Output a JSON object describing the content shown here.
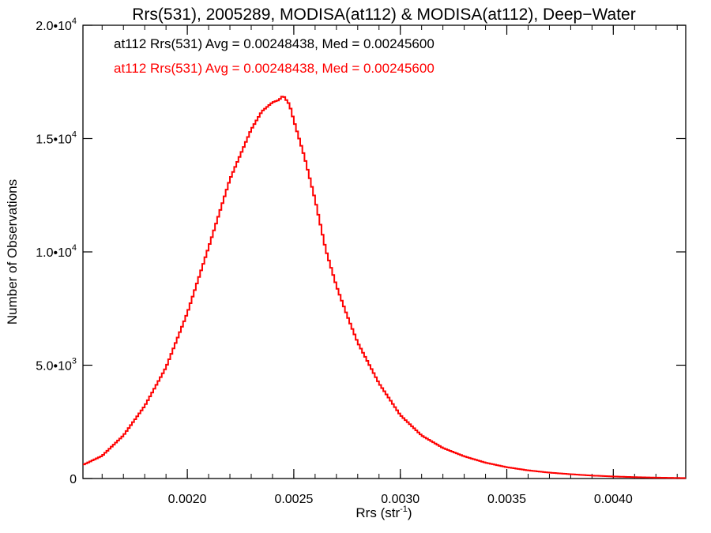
{
  "chart_data": {
    "type": "line",
    "title": "Rrs(531), 2005289, MODISA(at112) & MODISA(at112), Deep−Water",
    "xlabel": "Rrs (str",
    "xlabel_sup": "-1",
    "xlabel_close": ")",
    "ylabel": "Number of Observations",
    "xlim": [
      0.00151,
      0.00434
    ],
    "ylim": [
      0,
      20000
    ],
    "x_ticks": [
      {
        "value": 0.002,
        "label": "0.0020"
      },
      {
        "value": 0.0025,
        "label": "0.0025"
      },
      {
        "value": 0.003,
        "label": "0.0030"
      },
      {
        "value": 0.0035,
        "label": "0.0035"
      },
      {
        "value": 0.004,
        "label": "0.0040"
      }
    ],
    "y_ticks": [
      {
        "value": 0,
        "base": "0",
        "exp": ""
      },
      {
        "value": 5000,
        "base": "5.0•10",
        "exp": "3"
      },
      {
        "value": 10000,
        "base": "1.0•10",
        "exp": "4"
      },
      {
        "value": 15000,
        "base": "1.5•10",
        "exp": "4"
      },
      {
        "value": 20000,
        "base": "2.0•10",
        "exp": "4"
      }
    ],
    "annotations": [
      {
        "text": "at112 Rrs(531) Avg = 0.00248438, Med = 0.00245600",
        "color": "#000000"
      },
      {
        "text": "at112 Rrs(531) Avg = 0.00248438, Med = 0.00245600",
        "color": "#ff0000"
      }
    ],
    "series": [
      {
        "color": "#ff0000",
        "x": [
          0.00151,
          0.0016,
          0.0017,
          0.0018,
          0.0019,
          0.002,
          0.0021,
          0.0022,
          0.0023,
          0.00235,
          0.0024,
          0.00243,
          0.00245,
          0.00248,
          0.0025,
          0.00255,
          0.0026,
          0.00265,
          0.0027,
          0.00275,
          0.0028,
          0.0029,
          0.003,
          0.0031,
          0.0032,
          0.0033,
          0.0034,
          0.0035,
          0.0036,
          0.0037,
          0.0038,
          0.0039,
          0.004,
          0.0041,
          0.0042,
          0.00434
        ],
        "y": [
          600,
          1000,
          1900,
          3200,
          4900,
          7300,
          10200,
          13200,
          15400,
          16200,
          16600,
          16700,
          16900,
          16500,
          15800,
          14200,
          12300,
          10100,
          8500,
          7200,
          6000,
          4200,
          2800,
          1900,
          1350,
          980,
          700,
          500,
          360,
          260,
          190,
          130,
          90,
          60,
          40,
          20
        ]
      }
    ]
  }
}
